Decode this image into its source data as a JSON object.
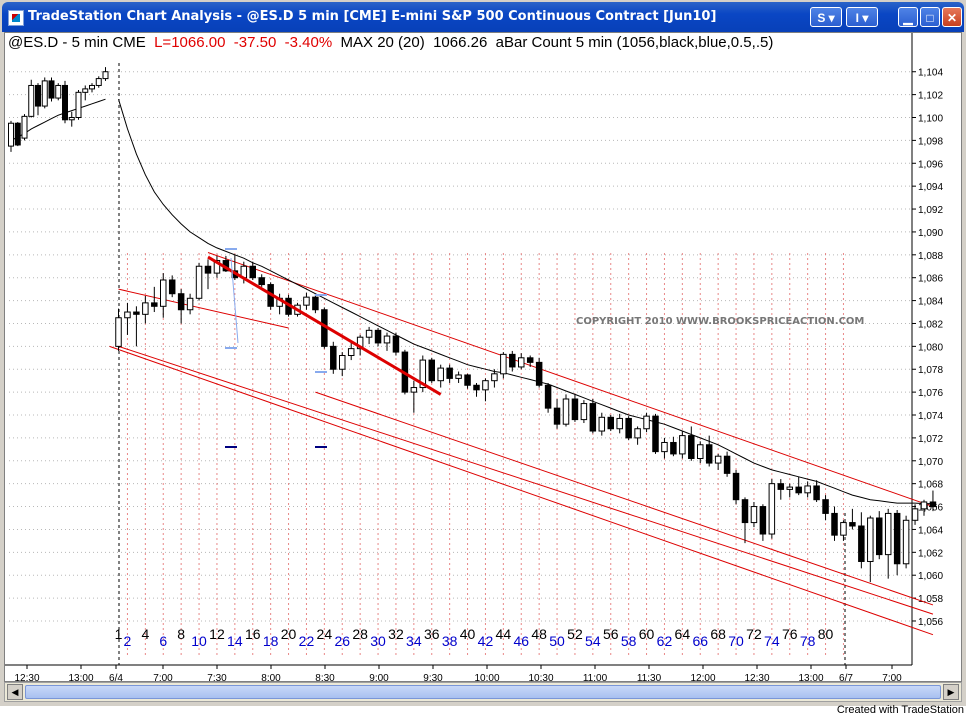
{
  "window": {
    "title": "TradeStation Chart Analysis - @ES.D 5 min [CME] E-mini S&P 500 Continuous Contract [Jun10]",
    "btn_s": "S",
    "btn_i": "I"
  },
  "status": {
    "symbol": "@ES.D - 5 min  CME",
    "last": "L=1066.00",
    "change": "-37.50",
    "change_pct": "-3.40%",
    "ma": "MAX 20 (20)",
    "ma_value": "1066.26",
    "indicator": "aBar Count 5 min (1056,black,blue,0.5,.5)"
  },
  "footer": "Created with TradeStation",
  "colors": {
    "candle": "#000000",
    "trendline": "#dd0000",
    "channel": "#dd0000",
    "ma": "#000000",
    "count_even": "#0000cc",
    "count_odd": "#000000",
    "marker": "#88aaee"
  },
  "chart_data": {
    "type": "candlestick",
    "copyright": "COPYRIGHT 2010  WWW.BROOKSPRICEACTION.COM",
    "ylim": [
      1054.6,
      1105.2
    ],
    "yticks": [
      "1,104",
      "1,102",
      "1,100",
      "1,098",
      "1,096",
      "1,094",
      "1,092",
      "1,090",
      "1,088",
      "1,086",
      "1,084",
      "1,082",
      "1,080",
      "1,078",
      "1,076",
      "1,074",
      "1,072",
      "1,070",
      "1,068",
      "1,066",
      "1,064",
      "1,062",
      "1,060",
      "1,058",
      "1,056"
    ],
    "ytick_values": [
      1104,
      1102,
      1100,
      1098,
      1096,
      1094,
      1092,
      1090,
      1088,
      1086,
      1084,
      1082,
      1080,
      1078,
      1076,
      1074,
      1072,
      1070,
      1068,
      1066,
      1064,
      1062,
      1060,
      1058,
      1056
    ],
    "xticks": [
      "12:30",
      "13:00",
      "6/4",
      "7:00",
      "7:30",
      "8:00",
      "8:30",
      "9:00",
      "9:30",
      "10:00",
      "10:30",
      "11:00",
      "11:30",
      "12:00",
      "12:30",
      "13:00",
      "6/7",
      "7:00"
    ],
    "bar_count_labels": [
      "1",
      "2",
      "4",
      "6",
      "8",
      "10",
      "12",
      "14",
      "16",
      "18",
      "20",
      "22",
      "24",
      "26",
      "28",
      "30",
      "32",
      "34",
      "36",
      "38",
      "40",
      "42",
      "44",
      "46",
      "48",
      "50",
      "52",
      "54",
      "56",
      "58",
      "60",
      "62",
      "64",
      "66",
      "68",
      "70",
      "72",
      "74",
      "76",
      "78",
      "80"
    ],
    "prev_session": {
      "ohlc": [
        [
          1097.5,
          1099.7,
          1097.0,
          1099.5
        ],
        [
          1099.5,
          1099.6,
          1097.5,
          1097.6
        ],
        [
          1098.2,
          1100.3,
          1098.0,
          1100.1
        ],
        [
          1100.1,
          1103.3,
          1100.0,
          1102.8
        ],
        [
          1102.8,
          1103.0,
          1100.2,
          1101.0
        ],
        [
          1101.0,
          1103.5,
          1100.8,
          1103.2
        ],
        [
          1103.2,
          1103.5,
          1101.4,
          1101.7
        ],
        [
          1101.7,
          1103.0,
          1101.5,
          1102.8
        ],
        [
          1102.8,
          1103.2,
          1099.5,
          1099.8
        ],
        [
          1099.8,
          1100.5,
          1099.2,
          1100.0
        ],
        [
          1100.0,
          1102.4,
          1099.8,
          1102.2
        ],
        [
          1102.2,
          1102.8,
          1101.5,
          1102.5
        ],
        [
          1102.5,
          1103.0,
          1102.2,
          1102.8
        ],
        [
          1102.8,
          1103.6,
          1102.6,
          1103.4
        ],
        [
          1103.4,
          1104.4,
          1103.2,
          1104.0
        ]
      ],
      "ma": [
        1098.0,
        1098.3,
        1098.6,
        1099.0,
        1099.3,
        1099.6,
        1099.9,
        1100.2,
        1100.4,
        1100.6,
        1100.8,
        1101.0,
        1101.2,
        1101.4,
        1101.6
      ]
    },
    "session": {
      "ohlc": [
        [
          1080.0,
          1083.3,
          1079.6,
          1082.5
        ],
        [
          1082.5,
          1083.8,
          1081.0,
          1083.0
        ],
        [
          1083.0,
          1083.5,
          1080.0,
          1082.8
        ],
        [
          1082.8,
          1084.4,
          1082.0,
          1083.8
        ],
        [
          1083.8,
          1085.2,
          1083.0,
          1083.5
        ],
        [
          1083.5,
          1086.4,
          1082.5,
          1085.8
        ],
        [
          1085.8,
          1086.2,
          1084.3,
          1084.6
        ],
        [
          1084.6,
          1085.0,
          1082.0,
          1083.2
        ],
        [
          1083.2,
          1084.6,
          1082.8,
          1084.2
        ],
        [
          1084.2,
          1087.3,
          1084.0,
          1087.0
        ],
        [
          1087.0,
          1087.6,
          1085.0,
          1086.4
        ],
        [
          1086.4,
          1087.9,
          1086.0,
          1087.5
        ],
        [
          1087.5,
          1087.9,
          1086.5,
          1086.6
        ],
        [
          1086.6,
          1088.0,
          1085.8,
          1086.0
        ],
        [
          1086.0,
          1087.4,
          1085.5,
          1087.0
        ],
        [
          1087.0,
          1087.4,
          1085.8,
          1086.0
        ],
        [
          1086.0,
          1086.3,
          1085.2,
          1085.4
        ],
        [
          1085.4,
          1085.6,
          1083.2,
          1083.5
        ],
        [
          1083.5,
          1084.6,
          1082.8,
          1084.2
        ],
        [
          1084.2,
          1084.5,
          1082.6,
          1082.8
        ],
        [
          1082.8,
          1083.8,
          1082.6,
          1083.6
        ],
        [
          1083.6,
          1084.7,
          1083.2,
          1084.3
        ],
        [
          1084.3,
          1084.6,
          1082.9,
          1083.2
        ],
        [
          1083.2,
          1083.4,
          1079.8,
          1080.0
        ],
        [
          1080.0,
          1080.4,
          1077.6,
          1078.0
        ],
        [
          1078.0,
          1079.5,
          1077.4,
          1079.2
        ],
        [
          1079.2,
          1080.3,
          1078.8,
          1079.8
        ],
        [
          1079.8,
          1081.0,
          1079.2,
          1080.8
        ],
        [
          1080.8,
          1081.7,
          1080.2,
          1081.4
        ],
        [
          1081.4,
          1081.6,
          1080.0,
          1080.3
        ],
        [
          1080.3,
          1081.2,
          1079.6,
          1080.9
        ],
        [
          1080.9,
          1081.2,
          1079.2,
          1079.5
        ],
        [
          1079.5,
          1079.7,
          1075.8,
          1076.0
        ],
        [
          1076.0,
          1077.0,
          1074.2,
          1076.4
        ],
        [
          1076.4,
          1079.2,
          1076.0,
          1078.8
        ],
        [
          1078.8,
          1079.0,
          1076.8,
          1077.0
        ],
        [
          1077.0,
          1078.4,
          1076.4,
          1078.1
        ],
        [
          1078.1,
          1078.4,
          1076.8,
          1077.2
        ],
        [
          1077.2,
          1077.8,
          1076.8,
          1077.5
        ],
        [
          1077.5,
          1077.6,
          1076.3,
          1076.6
        ],
        [
          1076.6,
          1076.8,
          1075.6,
          1076.2
        ],
        [
          1076.2,
          1077.2,
          1075.2,
          1077.0
        ],
        [
          1077.0,
          1078.0,
          1076.4,
          1077.6
        ],
        [
          1077.6,
          1079.5,
          1077.2,
          1079.3
        ],
        [
          1079.3,
          1079.6,
          1077.8,
          1078.2
        ],
        [
          1078.2,
          1079.4,
          1078.0,
          1079.0
        ],
        [
          1079.0,
          1079.2,
          1078.2,
          1078.6
        ],
        [
          1078.6,
          1079.0,
          1076.4,
          1076.6
        ],
        [
          1076.6,
          1076.8,
          1074.2,
          1074.6
        ],
        [
          1074.6,
          1075.4,
          1072.8,
          1073.2
        ],
        [
          1073.2,
          1075.8,
          1073.0,
          1075.4
        ],
        [
          1075.4,
          1075.8,
          1073.4,
          1073.6
        ],
        [
          1073.6,
          1075.3,
          1073.3,
          1075.0
        ],
        [
          1075.0,
          1075.4,
          1072.4,
          1072.6
        ],
        [
          1072.6,
          1074.2,
          1072.2,
          1073.8
        ],
        [
          1073.8,
          1074.0,
          1072.6,
          1072.8
        ],
        [
          1072.8,
          1074.1,
          1072.4,
          1073.7
        ],
        [
          1073.7,
          1073.9,
          1071.8,
          1072.0
        ],
        [
          1072.0,
          1073.0,
          1071.4,
          1072.8
        ],
        [
          1072.8,
          1074.2,
          1072.5,
          1073.9
        ],
        [
          1073.9,
          1074.1,
          1070.6,
          1070.8
        ],
        [
          1070.8,
          1072.0,
          1070.2,
          1071.6
        ],
        [
          1071.6,
          1072.1,
          1070.4,
          1070.6
        ],
        [
          1070.6,
          1072.6,
          1070.2,
          1072.2
        ],
        [
          1072.2,
          1073.0,
          1070.0,
          1070.2
        ],
        [
          1070.2,
          1071.7,
          1069.8,
          1071.4
        ],
        [
          1071.4,
          1072.2,
          1069.5,
          1069.8
        ],
        [
          1069.8,
          1070.6,
          1069.2,
          1070.4
        ],
        [
          1070.4,
          1070.8,
          1068.6,
          1068.9
        ],
        [
          1068.9,
          1069.2,
          1066.2,
          1066.6
        ],
        [
          1066.6,
          1066.8,
          1062.8,
          1064.6
        ],
        [
          1064.6,
          1066.4,
          1064.2,
          1066.0
        ],
        [
          1066.0,
          1066.2,
          1063.0,
          1063.6
        ],
        [
          1063.6,
          1068.4,
          1063.2,
          1068.0
        ],
        [
          1068.0,
          1068.4,
          1066.6,
          1067.5
        ],
        [
          1067.5,
          1068.0,
          1066.8,
          1067.7
        ],
        [
          1067.7,
          1068.6,
          1067.0,
          1067.2
        ],
        [
          1067.2,
          1068.2,
          1066.8,
          1067.8
        ],
        [
          1067.8,
          1068.3,
          1066.4,
          1066.6
        ],
        [
          1066.6,
          1067.0,
          1064.8,
          1065.4
        ],
        [
          1065.4,
          1066.0,
          1063.0,
          1063.5
        ],
        [
          1063.5,
          1064.8,
          1063.0,
          1064.6
        ],
        [
          1064.6,
          1065.8,
          1064.0,
          1064.3
        ],
        [
          1064.3,
          1065.5,
          1060.6,
          1061.2
        ],
        [
          1061.2,
          1065.2,
          1059.4,
          1065.0
        ],
        [
          1065.0,
          1065.6,
          1061.4,
          1061.8
        ],
        [
          1061.8,
          1065.8,
          1059.7,
          1065.4
        ],
        [
          1065.4,
          1065.7,
          1060.0,
          1061.0
        ],
        [
          1061.0,
          1065.2,
          1060.6,
          1064.8
        ],
        [
          1064.8,
          1066.2,
          1064.4,
          1065.8
        ],
        [
          1065.8,
          1066.6,
          1065.2,
          1066.4
        ],
        [
          1066.4,
          1067.4,
          1065.6,
          1066.0
        ]
      ],
      "ma": [
        1101.6,
        1099.0,
        1096.8,
        1095.0,
        1093.5,
        1092.4,
        1091.5,
        1090.7,
        1090.0,
        1089.5,
        1089.0,
        1088.6,
        1088.3,
        1088.0,
        1087.7,
        1087.3,
        1087.0,
        1086.6,
        1086.2,
        1085.8,
        1085.4,
        1085.0,
        1084.6,
        1084.2,
        1083.8,
        1083.4,
        1083.0,
        1082.6,
        1082.2,
        1081.8,
        1081.4,
        1081.0,
        1080.6,
        1080.2,
        1079.9,
        1079.6,
        1079.3,
        1079.0,
        1078.7,
        1078.4,
        1078.2,
        1078.0,
        1077.8,
        1077.7,
        1077.5,
        1077.3,
        1077.1,
        1076.9,
        1076.7,
        1076.4,
        1076.1,
        1075.8,
        1075.5,
        1075.2,
        1074.9,
        1074.6,
        1074.3,
        1074.0,
        1073.8,
        1073.6,
        1073.4,
        1073.2,
        1072.9,
        1072.6,
        1072.3,
        1072.0,
        1071.7,
        1071.4,
        1071.0,
        1070.6,
        1070.2,
        1069.8,
        1069.5,
        1069.2,
        1069.0,
        1068.8,
        1068.6,
        1068.4,
        1068.2,
        1067.9,
        1067.6,
        1067.3,
        1067.0,
        1066.8,
        1066.6,
        1066.5,
        1066.4,
        1066.3,
        1066.3,
        1066.3,
        1066.26,
        1066.26
      ]
    },
    "trendline": {
      "from": [
        10,
        1087.8
      ],
      "to": [
        36,
        1075.8
      ]
    },
    "channel_lines": [
      {
        "from": [
          10,
          1088.2
        ],
        "to": [
          91,
          1066.0
        ]
      },
      {
        "from": [
          0,
          1085.0
        ],
        "to": [
          19,
          1081.6
        ]
      },
      {
        "from": [
          0,
          1080.0
        ],
        "to": [
          91,
          1056.6
        ]
      },
      {
        "from": [
          22,
          1076.0
        ],
        "to": [
          91,
          1057.4
        ]
      },
      {
        "from": [
          -1,
          1080.0
        ],
        "to": [
          91,
          1054.8
        ]
      }
    ]
  }
}
